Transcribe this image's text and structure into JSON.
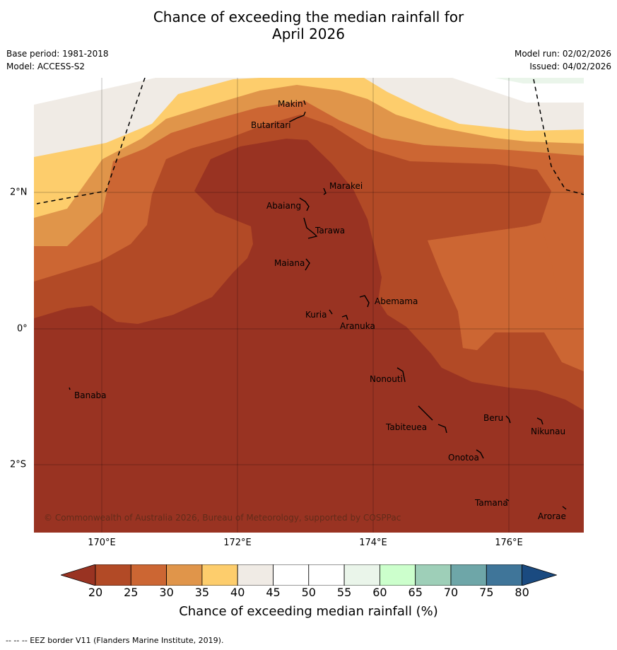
{
  "title": {
    "line1": "Chance of exceeding the median rainfall for",
    "line2": "April 2026"
  },
  "meta": {
    "base_period": "Base period: 1981-2018",
    "model": "Model: ACCESS-S2",
    "model_run": "Model run: 02/02/2026",
    "issued": "Issued: 04/02/2026"
  },
  "axes": {
    "lon_labels": [
      "170°E",
      "172°E",
      "174°E",
      "176°E"
    ],
    "lat_labels": [
      "2°N",
      "0°",
      "2°S"
    ]
  },
  "places": [
    {
      "name": "Makin"
    },
    {
      "name": "Butaritari"
    },
    {
      "name": "Marakei"
    },
    {
      "name": "Abaiang"
    },
    {
      "name": "Tarawa"
    },
    {
      "name": "Maiana"
    },
    {
      "name": "Abemama"
    },
    {
      "name": "Kuria"
    },
    {
      "name": "Aranuka"
    },
    {
      "name": "Nonouti"
    },
    {
      "name": "Banaba"
    },
    {
      "name": "Tabiteuea"
    },
    {
      "name": "Beru"
    },
    {
      "name": "Nikunau"
    },
    {
      "name": "Onotoa"
    },
    {
      "name": "Tamana"
    },
    {
      "name": "Arorae"
    }
  ],
  "copyright": "© Commonwealth of Australia 2026, Bureau of Meteorology, supported by COSPPac",
  "colorbar": {
    "ticks": [
      "20",
      "25",
      "30",
      "35",
      "40",
      "45",
      "50",
      "55",
      "60",
      "65",
      "70",
      "75",
      "80"
    ],
    "colors": [
      "#b24a26",
      "#cc6633",
      "#e0954a",
      "#fdcd6c",
      "#f0ebe5",
      "#ffffff",
      "#ffffff",
      "#eaf5ea",
      "#ccffcc",
      "#9ecfb8",
      "#6ea6a8",
      "#3f7599"
    ],
    "under_color": "#993322",
    "over_color": "#1a4a80",
    "label": "Chance of exceeding median rainfall (%)"
  },
  "footer": "--  --  -- EEZ border V11 (Flanders Marine Institute, 2019)."
}
